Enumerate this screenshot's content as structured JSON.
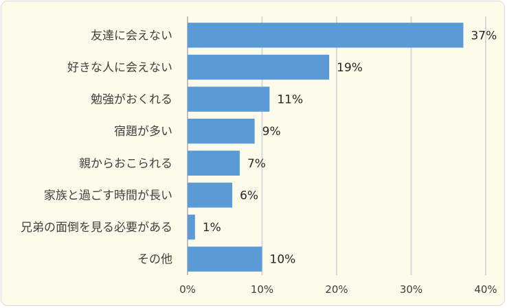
{
  "chart_data": {
    "type": "bar",
    "orientation": "horizontal",
    "categories": [
      "友達に会えない",
      "好きな人に会えない",
      "勉強がおくれる",
      "宿題が多い",
      "親からおこられる",
      "家族と過ごす時間が長い",
      "兄弟の面倒を見る必要がある",
      "その他"
    ],
    "values": [
      37,
      19,
      11,
      9,
      7,
      6,
      1,
      10
    ],
    "data_labels": [
      "37%",
      "19%",
      "11%",
      "9%",
      "7%",
      "6%",
      "1%",
      "10%"
    ],
    "xticks": [
      "0%",
      "10%",
      "20%",
      "30%",
      "40%"
    ],
    "xlim": [
      0,
      40
    ],
    "grid": "vertical",
    "bar_color": "#5b9bd5",
    "background_color": "#fdfbea",
    "title": "",
    "xlabel": "",
    "ylabel": ""
  }
}
